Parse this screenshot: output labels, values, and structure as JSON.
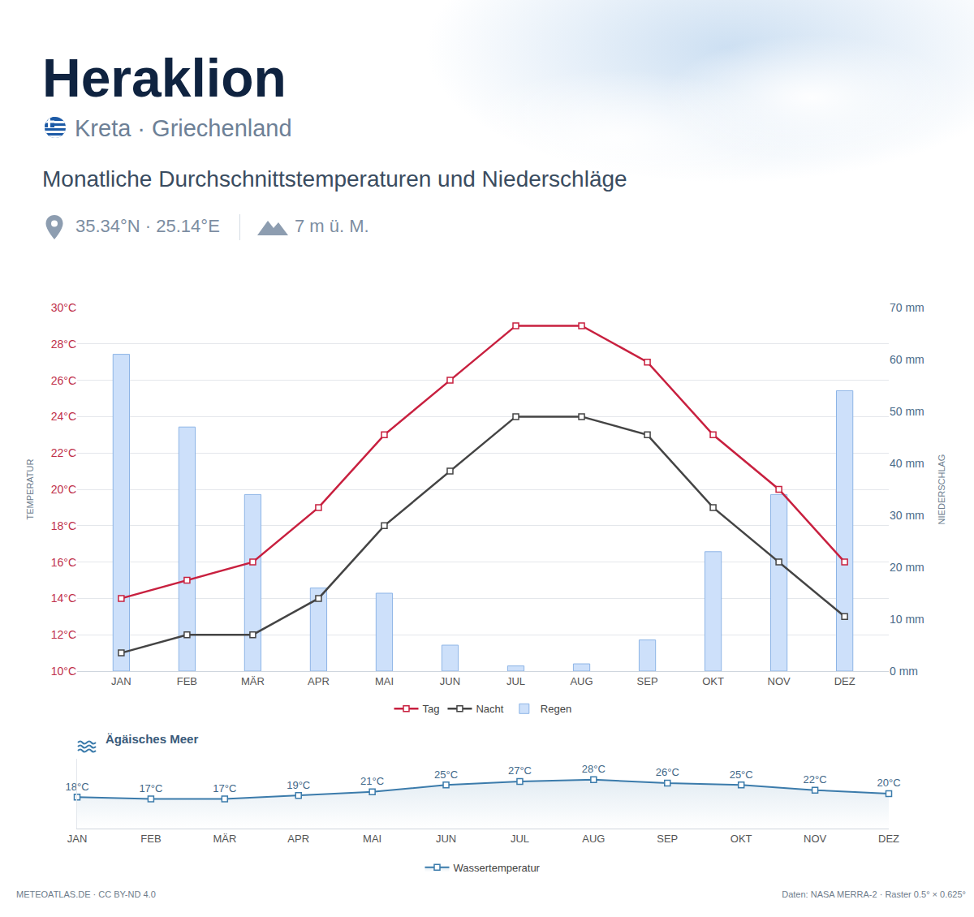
{
  "header": {
    "title": "Heraklion",
    "location": "Kreta · Griechenland",
    "subtitle": "Monatliche Durchschnittstemperaturen und Niederschläge",
    "coordinates": "35.34°N · 25.14°E",
    "elevation": "7 m ü. M."
  },
  "footer": {
    "source": "METEOATLAS.DE · CC BY-ND 4.0",
    "data": "Daten: NASA MERRA-2 · Raster 0.5° × 0.625°"
  },
  "chart_data": [
    {
      "type": "line",
      "categories": [
        "JAN",
        "FEB",
        "MÄR",
        "APR",
        "MAI",
        "JUN",
        "JUL",
        "AUG",
        "SEP",
        "OKT",
        "NOV",
        "DEZ"
      ],
      "y_label": "TEMPERATUR",
      "y2_label": "NIEDERSCHLAG",
      "ylim": [
        10,
        30
      ],
      "yticks": [
        {
          "value": 10,
          "label": "10°C"
        },
        {
          "value": 12,
          "label": "12°C"
        },
        {
          "value": 14,
          "label": "14°C"
        },
        {
          "value": 16,
          "label": "16°C"
        },
        {
          "value": 18,
          "label": "18°C"
        },
        {
          "value": 20,
          "label": "20°C"
        },
        {
          "value": 22,
          "label": "22°C"
        },
        {
          "value": 24,
          "label": "24°C"
        },
        {
          "value": 26,
          "label": "26°C"
        },
        {
          "value": 28,
          "label": "28°C"
        },
        {
          "value": 30,
          "label": "30°C"
        }
      ],
      "y2lim": [
        0,
        70
      ],
      "y2ticks": [
        {
          "value": 0,
          "label": "0 mm"
        },
        {
          "value": 10,
          "label": "10 mm"
        },
        {
          "value": 20,
          "label": "20 mm"
        },
        {
          "value": 30,
          "label": "30 mm"
        },
        {
          "value": 40,
          "label": "40 mm"
        },
        {
          "value": 50,
          "label": "50 mm"
        },
        {
          "value": 60,
          "label": "60 mm"
        },
        {
          "value": 70,
          "label": "70 mm"
        }
      ],
      "grid": true,
      "legend": "bottom",
      "series": [
        {
          "name": "Tag",
          "type": "line",
          "color": "#c8203f",
          "marker": "square",
          "values": [
            14,
            15,
            16,
            19,
            23,
            26,
            29,
            29,
            27,
            23,
            20,
            16
          ]
        },
        {
          "name": "Nacht",
          "type": "line",
          "color": "#444444",
          "marker": "square",
          "values": [
            11,
            12,
            12,
            14,
            18,
            21,
            24,
            24,
            23,
            19,
            16,
            13
          ]
        },
        {
          "name": "Regen",
          "type": "bar",
          "color": "#cde0fa",
          "axis": "y2",
          "values": [
            61,
            47,
            34,
            16,
            15,
            5,
            1,
            1.4,
            6,
            23,
            34,
            54
          ]
        }
      ]
    },
    {
      "type": "line",
      "title": "Ägäisches Meer",
      "categories": [
        "JAN",
        "FEB",
        "MÄR",
        "APR",
        "MAI",
        "JUN",
        "JUL",
        "AUG",
        "SEP",
        "OKT",
        "NOV",
        "DEZ"
      ],
      "ylim": [
        0,
        40
      ],
      "tick_labels": "x",
      "data_labels": true,
      "grid": false,
      "legend": "bottom",
      "series": [
        {
          "name": "Wassertemperatur",
          "color": "#3b7bab",
          "marker": "square",
          "values": [
            18,
            17,
            17,
            19,
            21,
            25,
            27,
            28,
            26,
            25,
            22,
            20
          ],
          "value_labels": [
            "18°C",
            "17°C",
            "17°C",
            "19°C",
            "21°C",
            "25°C",
            "27°C",
            "28°C",
            "26°C",
            "25°C",
            "22°C",
            "20°C"
          ]
        }
      ]
    }
  ]
}
